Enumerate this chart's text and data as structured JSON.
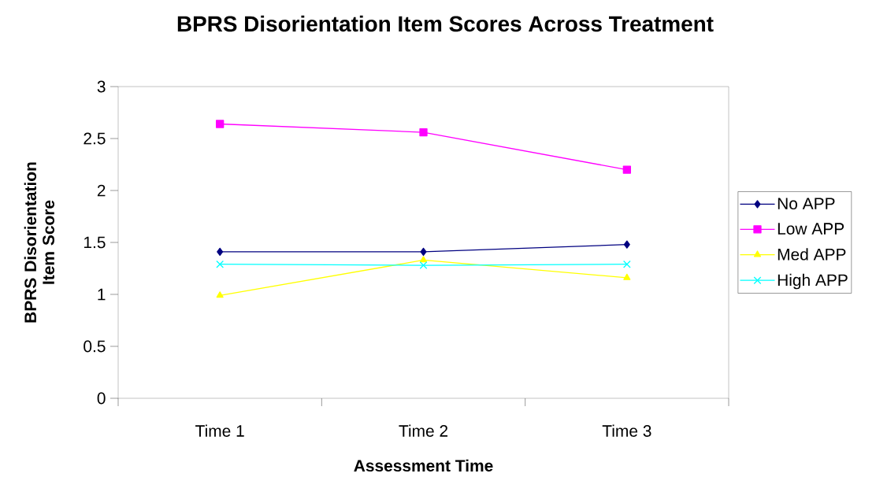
{
  "chart_data": {
    "type": "line",
    "title": "BPRS Disorientation Item Scores Across Treatment",
    "xlabel": "Assessment Time",
    "ylabel": "BPRS Disorientation Item Score",
    "categories": [
      "Time 1",
      "Time 2",
      "Time 3"
    ],
    "series": [
      {
        "name": "No APP",
        "color": "#000080",
        "marker": "diamond",
        "values": [
          1.41,
          1.41,
          1.48
        ]
      },
      {
        "name": "Low APP",
        "color": "#ff00ff",
        "marker": "square",
        "values": [
          2.64,
          2.56,
          2.2
        ]
      },
      {
        "name": "Med APP",
        "color": "#ffff00",
        "marker": "triangle",
        "values": [
          0.99,
          1.33,
          1.16
        ]
      },
      {
        "name": "High APP",
        "color": "#00ffff",
        "marker": "cross",
        "values": [
          1.29,
          1.28,
          1.29
        ]
      }
    ],
    "ylim": [
      0,
      3
    ],
    "yticks": [
      0,
      0.5,
      1,
      1.5,
      2,
      2.5,
      3
    ],
    "legend": "right",
    "line_style": "solid"
  }
}
